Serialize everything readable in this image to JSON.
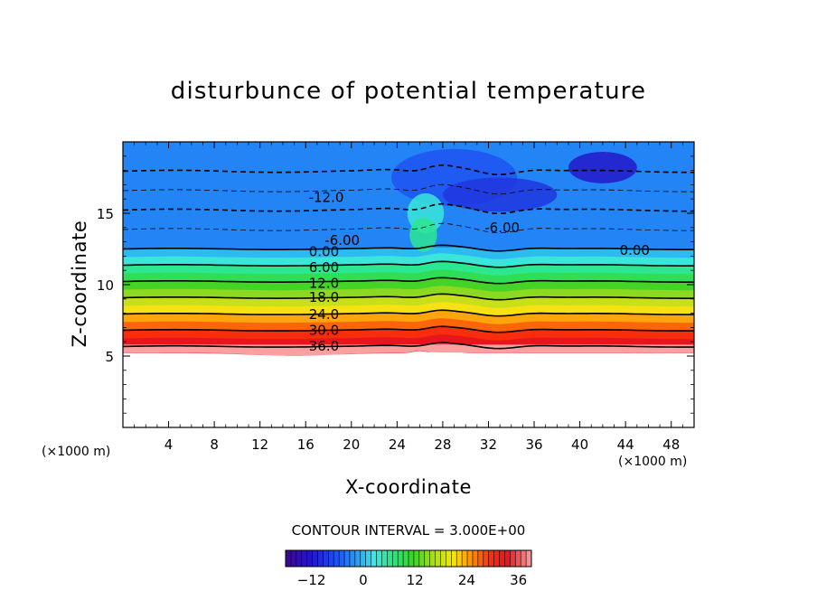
{
  "chart_data": {
    "type": "contour",
    "title": "disturbunce of potential temperature",
    "xlabel": "X-coordinate",
    "ylabel": "Z-coordinate",
    "x_unit_left": "(×1000 m)",
    "x_unit_right": "(×1000 m)",
    "xlim": [
      0,
      50
    ],
    "ylim": [
      0,
      20
    ],
    "x_ticks": [
      4,
      8,
      12,
      16,
      20,
      24,
      28,
      32,
      36,
      40,
      44,
      48
    ],
    "x_tick_labels": [
      "4",
      "8",
      "12",
      "16",
      "20",
      "24",
      "28",
      "32",
      "36",
      "40",
      "44",
      "48"
    ],
    "y_ticks": [
      5,
      10,
      15
    ],
    "y_tick_labels": [
      "5",
      "10",
      "15"
    ],
    "contour_interval": "CONTOUR INTERVAL = 3.000E+00",
    "contour_labels": [
      {
        "text": "-12.0",
        "x": 17.8,
        "z": 16.1
      },
      {
        "text": "-6.00",
        "x": 19.2,
        "z": 13.1
      },
      {
        "text": "0.00",
        "x": 17.6,
        "z": 12.3
      },
      {
        "text": "6.00",
        "x": 17.6,
        "z": 11.2
      },
      {
        "text": "12.0",
        "x": 17.6,
        "z": 10.1
      },
      {
        "text": "18.0",
        "x": 17.6,
        "z": 9.1
      },
      {
        "text": "24.0",
        "x": 17.6,
        "z": 7.9
      },
      {
        "text": "30.0",
        "x": 17.6,
        "z": 6.8
      },
      {
        "text": "36.0",
        "x": 17.6,
        "z": 5.7
      },
      {
        "text": "-6.00",
        "x": 33.2,
        "z": 14.0
      },
      {
        "text": "0.00",
        "x": 44.8,
        "z": 12.4
      }
    ],
    "colorbar": {
      "min": -18,
      "max": 39,
      "ticks": [
        -12,
        0,
        12,
        24,
        36
      ],
      "tick_labels": [
        "−12",
        "0",
        "12",
        "24",
        "36"
      ]
    }
  }
}
